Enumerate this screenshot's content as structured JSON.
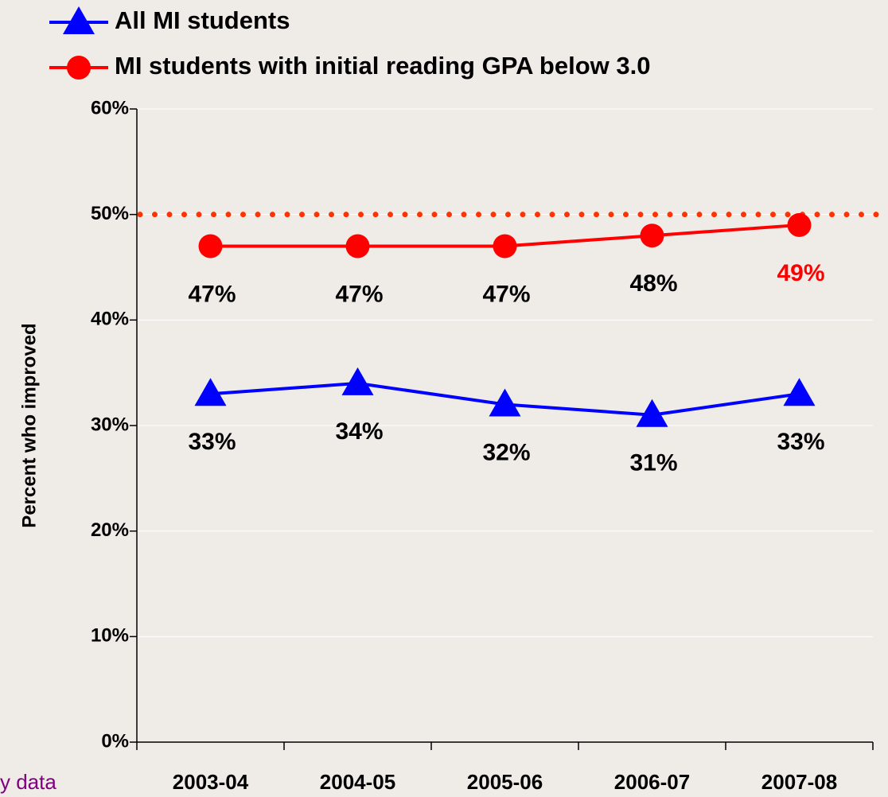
{
  "chart_data": {
    "type": "line",
    "y_label": "Percent who improved",
    "categories": [
      "2003-04",
      "2004-05",
      "2005-06",
      "2006-07",
      "2007-08"
    ],
    "series": [
      {
        "name": "All MI students",
        "color": "#0000ff",
        "marker": "triangle",
        "values": [
          33,
          34,
          32,
          31,
          33
        ],
        "value_labels": [
          "33%",
          "34%",
          "32%",
          "31%",
          "33%"
        ],
        "label_colors": [
          "#000000",
          "#000000",
          "#000000",
          "#000000",
          "#000000"
        ]
      },
      {
        "name": "MI students with initial reading GPA below 3.0",
        "color": "#ff0000",
        "marker": "circle",
        "values": [
          47,
          47,
          47,
          48,
          49
        ],
        "value_labels": [
          "47%",
          "47%",
          "47%",
          "48%",
          "49%"
        ],
        "label_colors": [
          "#000000",
          "#000000",
          "#000000",
          "#000000",
          "#ff0000"
        ]
      }
    ],
    "ylim": [
      0,
      60
    ],
    "yticks": [
      {
        "value": 0,
        "label": "0%"
      },
      {
        "value": 10,
        "label": "10%"
      },
      {
        "value": 20,
        "label": "20%"
      },
      {
        "value": 30,
        "label": "30%"
      },
      {
        "value": 40,
        "label": "40%"
      },
      {
        "value": 50,
        "label": "50%"
      },
      {
        "value": 60,
        "label": "60%"
      }
    ],
    "grid": true,
    "reference_line": {
      "value": 50,
      "color": "#ff3300"
    },
    "legend": "top",
    "footnote": "y data"
  }
}
